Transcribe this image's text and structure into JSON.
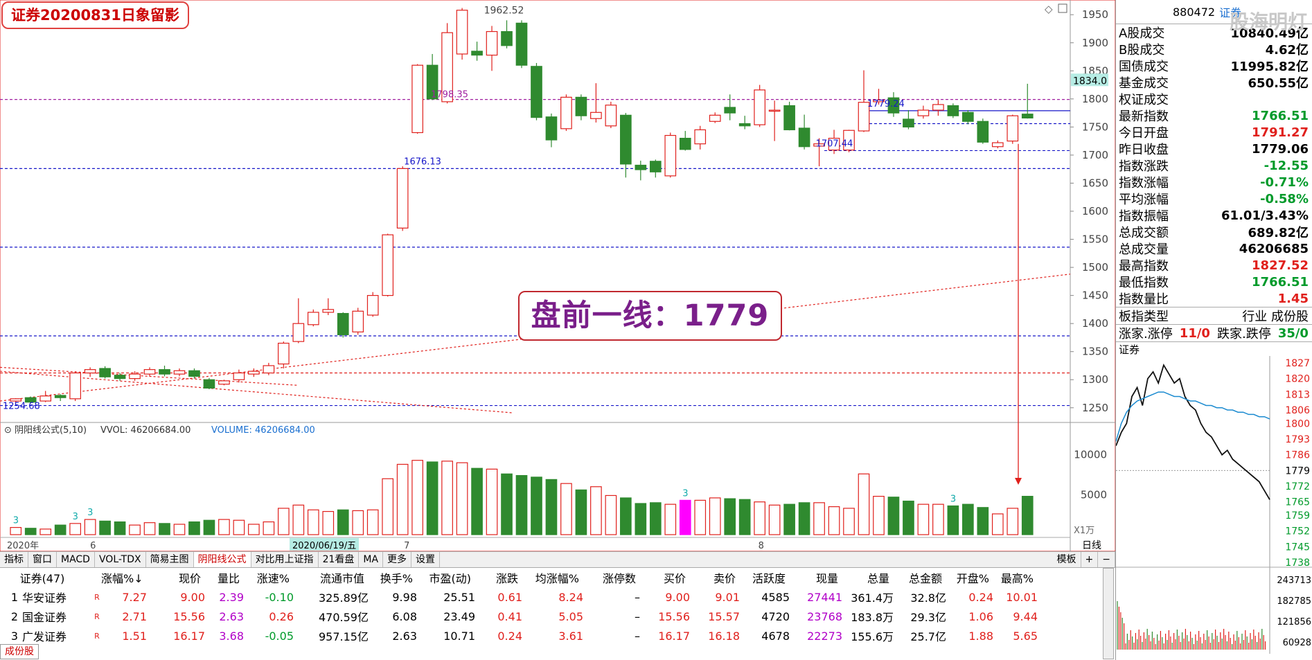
{
  "title_badge": "证券20200831日象留影",
  "callout": "盘前一线：1779",
  "price_axis": [
    "1950",
    "1900",
    "1850",
    "1800",
    "1750",
    "1700",
    "1650",
    "1600",
    "1550",
    "1500",
    "1450",
    "1400",
    "1350",
    "1300",
    "1250"
  ],
  "current_price_tag": "1834.0",
  "annotations": {
    "high": "1962.52",
    "a": "1798.35",
    "b": "1676.13",
    "c": "1779.24",
    "d": "1707.44",
    "low": "1254.68"
  },
  "vol_header": {
    "name": "阴阳线公式(5,10)",
    "vvol": "VVOL: 46206684.00",
    "volume": "VOLUME: 46206684.00"
  },
  "vol_axis": [
    "10000",
    "5000"
  ],
  "vol_unit": "X1万",
  "vol_marks": [
    "3",
    "3",
    "3",
    "3",
    "3"
  ],
  "time_axis": {
    "y2020": "2020年",
    "m6": "6",
    "m7": "7",
    "m8": "8",
    "cursor_date": "2020/06/19/五",
    "period": "日线"
  },
  "toolbar": {
    "tabs": [
      "指标",
      "窗口",
      "MACD",
      "VOL-TDX",
      "简易主图",
      "阴阳线公式",
      "对比用上证指",
      "21看盘",
      "MA",
      "更多",
      "设置"
    ],
    "right": [
      "模板",
      "+",
      "−"
    ]
  },
  "grid": {
    "headers": [
      "证券(47)",
      "",
      "涨幅%↓",
      "现价",
      "量比",
      "涨速%",
      "流通市值",
      "换手%",
      "市盈(动)",
      "涨跌",
      "均涨幅%",
      "涨停数",
      "买价",
      "卖价",
      "活跃度",
      "现量",
      "总量",
      "总金额",
      "开盘%",
      "最高%"
    ],
    "rows": [
      [
        "1",
        "华安证券",
        "R",
        "7.27",
        "9.00",
        "2.39",
        "-0.10",
        "325.89亿",
        "9.98",
        "25.51",
        "0.61",
        "8.24",
        "–",
        "9.00",
        "9.01",
        "4585",
        "27441",
        "361.4万",
        "32.8亿",
        "0.24",
        "10.01"
      ],
      [
        "2",
        "国金证券",
        "R",
        "2.71",
        "15.56",
        "2.63",
        "0.26",
        "470.59亿",
        "6.08",
        "23.49",
        "0.41",
        "5.05",
        "–",
        "15.56",
        "15.57",
        "4720",
        "23768",
        "183.8万",
        "29.3亿",
        "1.06",
        "9.44"
      ],
      [
        "3",
        "广发证券",
        "R",
        "1.51",
        "16.17",
        "3.68",
        "-0.05",
        "957.15亿",
        "2.63",
        "10.71",
        "0.24",
        "3.61",
        "–",
        "16.17",
        "16.18",
        "4678",
        "22273",
        "155.6万",
        "25.7亿",
        "1.88",
        "5.65"
      ]
    ]
  },
  "bottom_tab": "成份股",
  "sidebar": {
    "code": "880472",
    "name": "证券",
    "watermark": "股海明灯",
    "stats": [
      {
        "k": "A股成交",
        "v": "10840.49亿",
        "c": "black"
      },
      {
        "k": "B股成交",
        "v": "4.62亿",
        "c": "black"
      },
      {
        "k": "国债成交",
        "v": "11995.82亿",
        "c": "black"
      },
      {
        "k": "基金成交",
        "v": "650.55亿",
        "c": "black"
      },
      {
        "k": "权证成交",
        "v": "",
        "c": "black"
      },
      {
        "k": "最新指数",
        "v": "1766.51",
        "c": "green"
      },
      {
        "k": "今日开盘",
        "v": "1791.27",
        "c": "red"
      },
      {
        "k": "昨日收盘",
        "v": "1779.06",
        "c": "black"
      },
      {
        "k": "指数涨跌",
        "v": "-12.55",
        "c": "green"
      },
      {
        "k": "指数涨幅",
        "v": "-0.71%",
        "c": "green"
      },
      {
        "k": "平均涨幅",
        "v": "-0.58%",
        "c": "green"
      },
      {
        "k": "指数振幅",
        "v": "61.01/3.43%",
        "c": "black"
      },
      {
        "k": "总成交额",
        "v": "689.82亿",
        "c": "black"
      },
      {
        "k": "总成交量",
        "v": "46206685",
        "c": "black"
      },
      {
        "k": "最高指数",
        "v": "1827.52",
        "c": "red"
      },
      {
        "k": "最低指数",
        "v": "1766.51",
        "c": "green"
      },
      {
        "k": "指数量比",
        "v": "1.45",
        "c": "red"
      }
    ],
    "type_row": {
      "k": "板指类型",
      "v": "行业 成份股"
    },
    "adv": {
      "k1": "涨家.涨停",
      "v1": "11/0",
      "k2": "跌家.跌停",
      "v2": "35/0"
    },
    "mini_title": "证券",
    "mini_axis": [
      "1827",
      "1820",
      "1813",
      "1806",
      "1800",
      "1793",
      "1786",
      "1779",
      "1772",
      "1765",
      "1759",
      "1752",
      "1745",
      "1738"
    ],
    "mini_vol_axis": [
      "243713",
      "182785",
      "121856",
      "60928"
    ]
  },
  "colors": {
    "up": "#e0201c",
    "down": "#2f8a2f",
    "dash_blue": "#1616c8",
    "dash_red": "#e0201c"
  },
  "chart_data": {
    "type": "candlestick",
    "ylim": [
      1230,
      1970
    ],
    "candles": [
      [
        1262,
        1266,
        1258,
        1267
      ],
      [
        1268,
        1260,
        1258,
        1270
      ],
      [
        1262,
        1271,
        1260,
        1280
      ],
      [
        1272,
        1268,
        1262,
        1274
      ],
      [
        1266,
        1312,
        1262,
        1315
      ],
      [
        1312,
        1318,
        1305,
        1322
      ],
      [
        1320,
        1305,
        1302,
        1324
      ],
      [
        1308,
        1302,
        1298,
        1312
      ],
      [
        1302,
        1310,
        1298,
        1315
      ],
      [
        1310,
        1318,
        1306,
        1322
      ],
      [
        1318,
        1310,
        1306,
        1325
      ],
      [
        1310,
        1316,
        1306,
        1320
      ],
      [
        1316,
        1306,
        1302,
        1320
      ],
      [
        1300,
        1285,
        1283,
        1303
      ],
      [
        1292,
        1298,
        1290,
        1300
      ],
      [
        1300,
        1312,
        1295,
        1318
      ],
      [
        1310,
        1315,
        1305,
        1320
      ],
      [
        1312,
        1325,
        1308,
        1330
      ],
      [
        1328,
        1365,
        1320,
        1368
      ],
      [
        1368,
        1400,
        1365,
        1445
      ],
      [
        1398,
        1420,
        1395,
        1425
      ],
      [
        1420,
        1425,
        1415,
        1445
      ],
      [
        1418,
        1380,
        1375,
        1420
      ],
      [
        1385,
        1422,
        1380,
        1428
      ],
      [
        1415,
        1450,
        1412,
        1456
      ],
      [
        1450,
        1558,
        1448,
        1560
      ],
      [
        1570,
        1676,
        1565,
        1680
      ],
      [
        1740,
        1860,
        1738,
        1862
      ],
      [
        1860,
        1800,
        1798,
        1880
      ],
      [
        1795,
        1918,
        1792,
        1935
      ],
      [
        1880,
        1958,
        1870,
        1962
      ],
      [
        1885,
        1878,
        1868,
        1902
      ],
      [
        1878,
        1920,
        1850,
        1930
      ],
      [
        1920,
        1895,
        1890,
        1940
      ],
      [
        1935,
        1860,
        1855,
        1940
      ],
      [
        1858,
        1767,
        1762,
        1864
      ],
      [
        1768,
        1727,
        1714,
        1774
      ],
      [
        1747,
        1803,
        1743,
        1808
      ],
      [
        1803,
        1770,
        1762,
        1808
      ],
      [
        1765,
        1776,
        1758,
        1828
      ],
      [
        1752,
        1789,
        1748,
        1795
      ],
      [
        1771,
        1684,
        1660,
        1775
      ],
      [
        1682,
        1674,
        1655,
        1690
      ],
      [
        1689,
        1670,
        1660,
        1692
      ],
      [
        1663,
        1735,
        1660,
        1740
      ],
      [
        1730,
        1710,
        1708,
        1743
      ],
      [
        1720,
        1745,
        1710,
        1752
      ],
      [
        1760,
        1771,
        1757,
        1776
      ],
      [
        1785,
        1775,
        1762,
        1808
      ],
      [
        1756,
        1752,
        1746,
        1770
      ],
      [
        1754,
        1816,
        1750,
        1825
      ],
      [
        1780,
        1780,
        1725,
        1797
      ],
      [
        1788,
        1745,
        1744,
        1795
      ],
      [
        1748,
        1715,
        1710,
        1772
      ],
      [
        1716,
        1720,
        1680,
        1730
      ],
      [
        1709,
        1730,
        1702,
        1745
      ],
      [
        1709,
        1744,
        1705,
        1745
      ],
      [
        1743,
        1794,
        1741,
        1851
      ],
      [
        1795,
        1798,
        1790,
        1818
      ],
      [
        1802,
        1775,
        1768,
        1812
      ],
      [
        1764,
        1750,
        1746,
        1780
      ],
      [
        1770,
        1780,
        1765,
        1788
      ],
      [
        1780,
        1790,
        1770,
        1798
      ],
      [
        1788,
        1770,
        1766,
        1792
      ],
      [
        1776,
        1760,
        1755,
        1780
      ],
      [
        1760,
        1723,
        1720,
        1765
      ],
      [
        1715,
        1722,
        1712,
        1726
      ],
      [
        1725,
        1770,
        1720,
        1772
      ],
      [
        1773,
        1766,
        1765,
        1827
      ]
    ],
    "volume": [
      900,
      800,
      700,
      1200,
      1400,
      1900,
      1700,
      1600,
      1200,
      1500,
      1400,
      1300,
      1600,
      1800,
      1900,
      1800,
      1300,
      1600,
      3300,
      3700,
      3100,
      2900,
      3100,
      3000,
      3100,
      7000,
      8800,
      9300,
      9100,
      9200,
      9000,
      8300,
      8200,
      7600,
      7400,
      7200,
      6900,
      6400,
      5600,
      6000,
      4900,
      4600,
      3900,
      4000,
      3800,
      4300,
      4300,
      4600,
      4500,
      4400,
      4100,
      3700,
      3800,
      4000,
      4000,
      3500,
      3300,
      7600,
      4800,
      4700,
      4200,
      3800,
      3800,
      3600,
      3800,
      3400,
      2600,
      3300,
      4800
    ],
    "vol_ylim": [
      0,
      13000
    ]
  }
}
